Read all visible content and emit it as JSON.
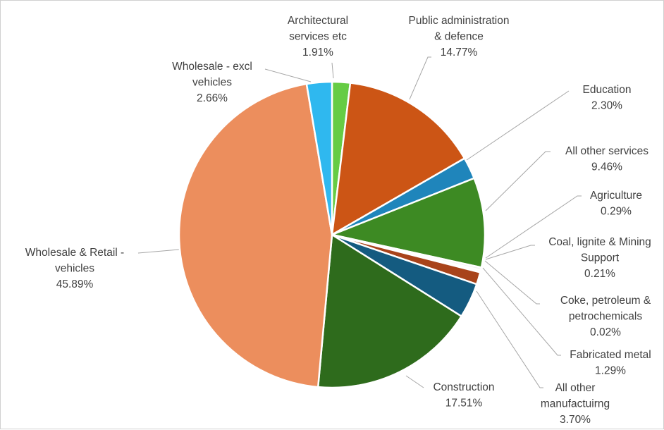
{
  "chart_data": {
    "type": "pie",
    "title": "",
    "slices": [
      {
        "label": [
          "Architectural",
          "services etc"
        ],
        "value": 1.91,
        "display": "1.91%",
        "color": "#66cc44"
      },
      {
        "label": [
          "Public administration",
          "& defence"
        ],
        "value": 14.77,
        "display": "14.77%",
        "color": "#cc5515"
      },
      {
        "label": [
          "Education"
        ],
        "value": 2.3,
        "display": "2.30%",
        "color": "#1f85bb"
      },
      {
        "label": [
          "All other services"
        ],
        "value": 9.46,
        "display": "9.46%",
        "color": "#3d8a23"
      },
      {
        "label": [
          "Agriculture"
        ],
        "value": 0.29,
        "display": "0.29%",
        "color": "#f2f2f2"
      },
      {
        "label": [
          "Coal, lignite & Mining",
          "Support"
        ],
        "value": 0.21,
        "display": "0.21%",
        "color": "#e8e8e8"
      },
      {
        "label": [
          "Coke, petroleum &",
          "petrochemicals"
        ],
        "value": 0.02,
        "display": "0.02%",
        "color": "#3b3b9a"
      },
      {
        "label": [
          "Fabricated metal"
        ],
        "value": 1.29,
        "display": "1.29%",
        "color": "#a8431a"
      },
      {
        "label": [
          "All other",
          "manufactuirng"
        ],
        "value": 3.7,
        "display": "3.70%",
        "color": "#145b80"
      },
      {
        "label": [
          "Construction"
        ],
        "value": 17.51,
        "display": "17.51%",
        "color": "#2e6b1c"
      },
      {
        "label": [
          "Wholesale & Retail -",
          "vehicles"
        ],
        "value": 45.89,
        "display": "45.89%",
        "color": "#ec8e5d"
      },
      {
        "label": [
          "Wholesale - excl",
          "vehicles"
        ],
        "value": 2.66,
        "display": "2.66%",
        "color": "#2fb8ef"
      }
    ]
  }
}
